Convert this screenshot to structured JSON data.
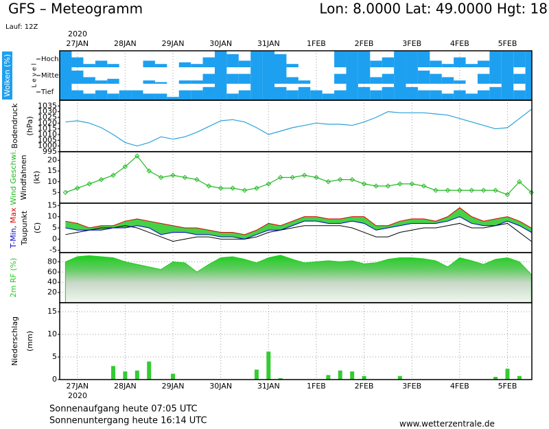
{
  "header": {
    "title": "GFS – Meteogramm",
    "location": "Lon: 8.0000 Lat: 49.0000 Hgt: 18",
    "run": "Lauf: 12Z"
  },
  "time": {
    "year": "2020",
    "xlim": [
      -0.37,
      9.51
    ],
    "xticks": [
      {
        "value": 0,
        "label": "27JAN"
      },
      {
        "value": 1,
        "label": "28JAN"
      },
      {
        "value": 2,
        "label": "29JAN"
      },
      {
        "value": 3,
        "label": "30JAN"
      },
      {
        "value": 4,
        "label": "31JAN"
      },
      {
        "value": 5,
        "label": "1FEB"
      },
      {
        "value": 6,
        "label": "2FEB"
      },
      {
        "value": 7,
        "label": "3FEB"
      },
      {
        "value": 8,
        "label": "4FEB"
      },
      {
        "value": 9,
        "label": "5FEB"
      }
    ],
    "x": [
      -0.25,
      0,
      0.25,
      0.5,
      0.75,
      1,
      1.25,
      1.5,
      1.75,
      2,
      2.25,
      2.5,
      2.75,
      3,
      3.25,
      3.5,
      3.75,
      4,
      4.25,
      4.5,
      4.75,
      5,
      5.25,
      5.5,
      5.75,
      6,
      6.25,
      6.5,
      6.75,
      7,
      7.25,
      7.5,
      7.75,
      8,
      8.25,
      8.5,
      8.75,
      9,
      9.25,
      9.5
    ]
  },
  "chart_data": [
    {
      "type": "cloud-bands",
      "ylabel": "Wolken (%)",
      "level_label": "L e v e l",
      "ylim": [
        0,
        100
      ],
      "series": [
        {
          "name": "Hoch",
          "color": "#1ea0f0",
          "values": [
            100,
            60,
            20,
            40,
            20,
            0,
            0,
            40,
            20,
            0,
            30,
            20,
            60,
            100,
            80,
            40,
            100,
            100,
            80,
            20,
            0,
            0,
            0,
            100,
            100,
            100,
            40,
            60,
            100,
            100,
            100,
            40,
            20,
            60,
            20,
            40,
            100,
            100,
            100,
            100
          ]
        },
        {
          "name": "Mittel",
          "color": "#1ea0f0",
          "values": [
            100,
            80,
            40,
            20,
            30,
            0,
            0,
            20,
            10,
            0,
            20,
            20,
            60,
            100,
            60,
            60,
            100,
            100,
            100,
            40,
            20,
            0,
            0,
            60,
            100,
            100,
            40,
            60,
            100,
            100,
            80,
            60,
            40,
            20,
            0,
            60,
            100,
            100,
            60,
            100
          ]
        },
        {
          "name": "Tief",
          "color": "#1ea0f0",
          "values": [
            100,
            60,
            40,
            60,
            40,
            60,
            60,
            40,
            40,
            20,
            60,
            60,
            80,
            100,
            40,
            60,
            100,
            100,
            80,
            60,
            80,
            60,
            40,
            60,
            100,
            80,
            60,
            80,
            100,
            80,
            60,
            60,
            40,
            60,
            40,
            60,
            80,
            100,
            60,
            100
          ]
        }
      ]
    },
    {
      "type": "line",
      "ylabel": "Bodendruck",
      "yunit": "(hPa)",
      "ylim": [
        995,
        1040
      ],
      "yticks": [
        995,
        1000,
        1005,
        1010,
        1015,
        1020,
        1025,
        1030,
        1035
      ],
      "grid": false,
      "series": [
        {
          "color": "#2aa0d8",
          "values": [
            1021,
            1022,
            1020,
            1016,
            1010,
            1003,
            1000,
            1003,
            1008,
            1006,
            1008,
            1012,
            1017,
            1022,
            1023,
            1021,
            1016,
            1010,
            1013,
            1016,
            1018,
            1020,
            1019,
            1019,
            1018,
            1021,
            1025,
            1030,
            1029,
            1029,
            1029,
            1028,
            1027,
            1024,
            1021,
            1018,
            1015,
            1016,
            1024,
            1032
          ]
        }
      ]
    },
    {
      "type": "wind",
      "ylabel": "Wind Geschwi.",
      "ylabel2": "Windfahnen",
      "yunit": "(kt)",
      "ylim": [
        0,
        24
      ],
      "yticks": [
        5,
        10,
        15,
        20
      ],
      "grid": false,
      "series": [
        {
          "color": "#22bb22",
          "values": [
            5,
            7,
            9,
            11,
            13,
            17,
            22,
            15,
            12,
            13,
            12,
            11,
            8,
            7,
            7,
            6,
            7,
            9,
            12,
            12,
            13,
            12,
            10,
            11,
            11,
            9,
            8,
            8,
            9,
            9,
            8,
            6,
            6,
            6,
            6,
            6,
            6,
            4,
            10,
            5
          ]
        }
      ]
    },
    {
      "type": "temperature",
      "yunit": "(C)",
      "ylim": [
        -6,
        16
      ],
      "yticks": [
        -5,
        0,
        5,
        10,
        15
      ],
      "grid": false,
      "range_color": "#33cc33",
      "series": [
        {
          "name": "T-Min",
          "color": "#0000cc",
          "values": [
            5,
            4,
            4,
            4,
            5,
            5,
            6,
            5,
            2,
            3,
            3,
            2,
            2,
            1,
            1,
            0,
            2,
            4,
            4,
            6,
            8,
            8,
            7,
            7,
            8,
            7,
            4,
            5,
            6,
            7,
            7,
            7,
            8,
            10,
            7,
            6,
            6,
            8,
            6,
            3
          ]
        },
        {
          "name": "Max",
          "color": "#dd0000",
          "values": [
            8,
            7,
            5,
            6,
            6,
            8,
            9,
            8,
            7,
            6,
            5,
            5,
            4,
            3,
            3,
            2,
            4,
            7,
            6,
            8,
            10,
            10,
            9,
            9,
            10,
            10,
            6,
            6,
            8,
            9,
            9,
            8,
            10,
            14,
            10,
            8,
            9,
            10,
            8,
            5
          ]
        },
        {
          "name": "Taupunkt",
          "color": "#000000",
          "values": [
            2,
            3,
            4,
            5,
            5,
            6,
            5,
            3,
            1,
            -1,
            0,
            1,
            1,
            0,
            0,
            0,
            1,
            3,
            4,
            5,
            6,
            6,
            6,
            6,
            5,
            3,
            1,
            1,
            3,
            4,
            5,
            5,
            6,
            7,
            5,
            5,
            6,
            7,
            3,
            -1
          ]
        }
      ]
    },
    {
      "type": "area",
      "ylabel": "2m RF (%)",
      "ylim": [
        0,
        98
      ],
      "yticks": [
        20,
        40,
        60,
        80
      ],
      "grid": true,
      "series": [
        {
          "color": "#22cc22",
          "values": [
            80,
            90,
            92,
            90,
            88,
            80,
            75,
            70,
            65,
            80,
            78,
            60,
            75,
            88,
            90,
            85,
            78,
            88,
            93,
            85,
            78,
            80,
            82,
            80,
            82,
            76,
            78,
            85,
            88,
            88,
            86,
            82,
            70,
            88,
            82,
            75,
            85,
            88,
            80,
            55
          ]
        }
      ]
    },
    {
      "type": "bar",
      "ylabel": "Niederschlag",
      "yunit": "(mm)",
      "ylim": [
        0,
        17
      ],
      "yticks": [
        0,
        5,
        10,
        15
      ],
      "grid": true,
      "series": [
        {
          "color": "#33cc33",
          "values": [
            0,
            0,
            0,
            0,
            3,
            1.8,
            2,
            4,
            0,
            1.3,
            0,
            0,
            0,
            0,
            0,
            0,
            2.2,
            6.2,
            0.3,
            0,
            0,
            0,
            1,
            2,
            1.8,
            0.8,
            0,
            0,
            0.8,
            0,
            0,
            0,
            0,
            0,
            0,
            0,
            0.6,
            2.4,
            0.8
          ]
        }
      ]
    }
  ],
  "footer": {
    "sunrise": "Sonnenaufgang heute 07:05 UTC",
    "sunset": "Sonnenuntergang heute 16:14 UTC",
    "source": "www.wetterzentrale.de"
  }
}
